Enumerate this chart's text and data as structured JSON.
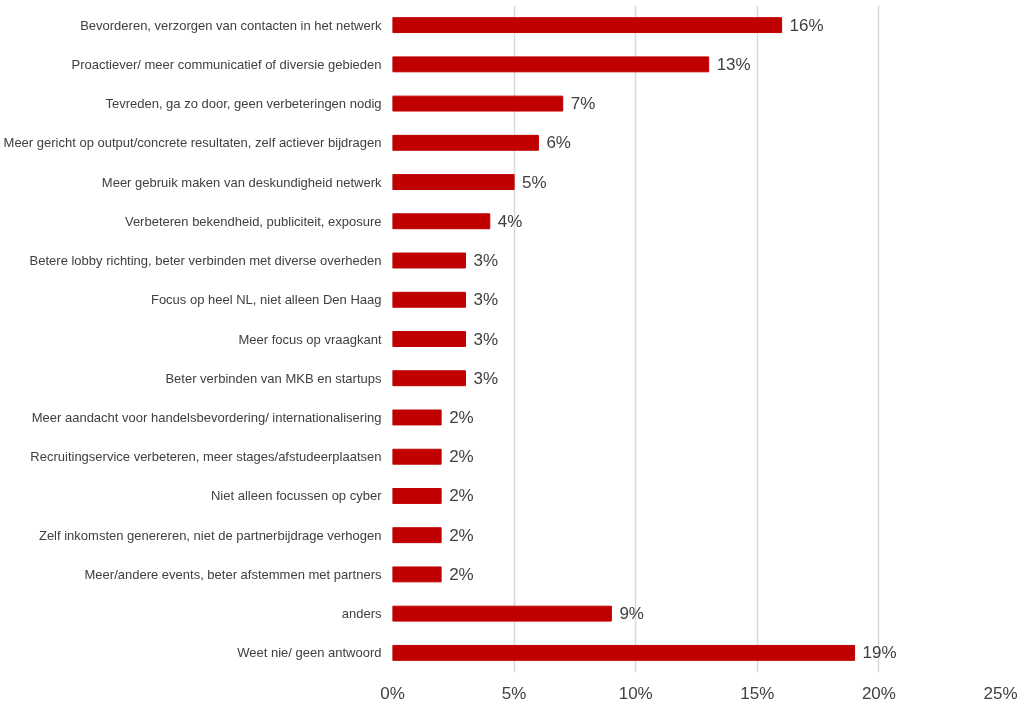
{
  "chart_data": {
    "type": "bar",
    "orientation": "horizontal",
    "categories": [
      "Bevorderen, verzorgen van contacten in het netwerk",
      "Proactiever/ meer communicatief of diversie gebieden",
      "Tevreden, ga zo door, geen verbeteringen nodig",
      "Meer gericht op output/concrete resultaten, zelf actiever bijdragen",
      "Meer gebruik maken van deskundigheid netwerk",
      "Verbeteren bekendheid, publiciteit, exposure",
      "Betere lobby richting, beter verbinden met diverse overheden",
      "Focus op heel NL, niet alleen Den Haag",
      "Meer focus op vraagkant",
      "Beter verbinden van MKB en startups",
      "Meer aandacht voor handelsbevordering/ internationalisering",
      "Recruitingservice verbeteren, meer stages/afstudeerplaatsen",
      "Niet alleen focussen op cyber",
      "Zelf inkomsten genereren, niet de partnerbijdrage verhogen",
      "Meer/andere events, beter afstemmen met partners",
      "anders",
      "Weet nie/ geen antwoord"
    ],
    "values": [
      16,
      13,
      7,
      6,
      5,
      4,
      3,
      3,
      3,
      3,
      2,
      2,
      2,
      2,
      2,
      9,
      19
    ],
    "value_labels": [
      "16%",
      "13%",
      "7%",
      "6%",
      "5%",
      "4%",
      "3%",
      "3%",
      "3%",
      "3%",
      "2%",
      "2%",
      "2%",
      "2%",
      "2%",
      "9%",
      "19%"
    ],
    "color": "#c00000",
    "xlim": [
      0,
      25
    ],
    "xticks": [
      {
        "value": 0,
        "label": "0%"
      },
      {
        "value": 5,
        "label": "5%"
      },
      {
        "value": 10,
        "label": "10%"
      },
      {
        "value": 15,
        "label": "15%"
      },
      {
        "value": 20,
        "label": "20%"
      },
      {
        "value": 25,
        "label": "25%"
      }
    ],
    "grid": "x"
  }
}
